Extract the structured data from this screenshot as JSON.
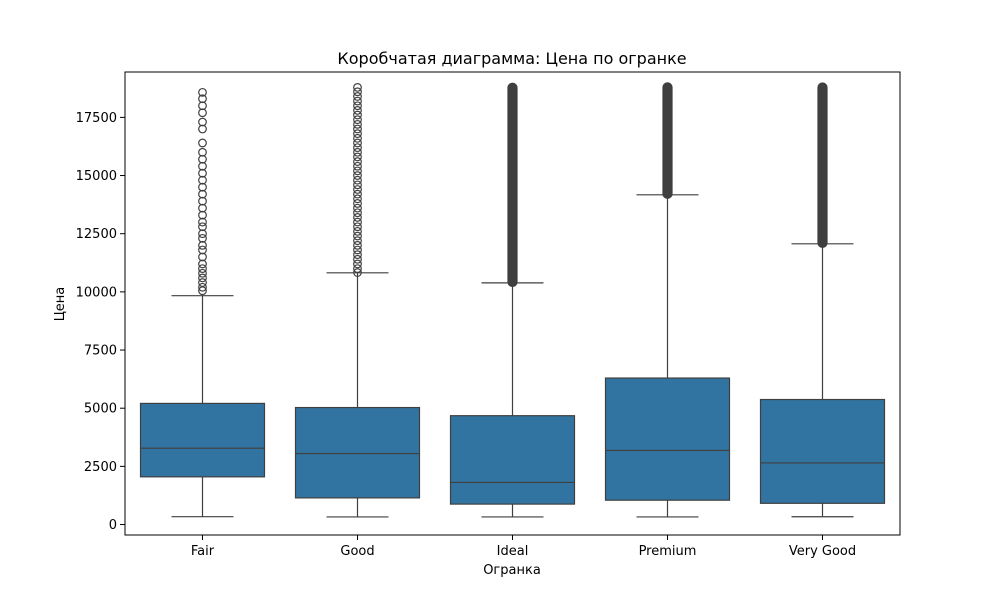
{
  "chart_data": {
    "type": "box",
    "title": "Коробчатая диаграмма: Цена по огранке",
    "xlabel": "Огранка",
    "ylabel": "Цена",
    "categories": [
      "Fair",
      "Good",
      "Ideal",
      "Premium",
      "Very Good"
    ],
    "ylim": [
      -450,
      19450
    ],
    "yticks": [
      0,
      2500,
      5000,
      7500,
      10000,
      12500,
      15000,
      17500
    ],
    "ytick_labels": [
      "0",
      "2500",
      "5000",
      "7500",
      "10000",
      "12500",
      "15000",
      "17500"
    ],
    "box_color": "#3274a1",
    "line_color": "#3f3f3f",
    "grid": false,
    "boxes": [
      {
        "category": "Fair",
        "whisker_low": 337,
        "q1": 2050,
        "median": 3282,
        "q3": 5206,
        "whisker_high": 9836,
        "outliers": [
          10050,
          10200,
          10400,
          10600,
          10800,
          11000,
          11200,
          11500,
          11800,
          12000,
          12300,
          12500,
          12800,
          13000,
          13300,
          13600,
          13900,
          14200,
          14500,
          14800,
          15100,
          15400,
          15700,
          16000,
          16400,
          17000,
          17300,
          17700,
          18000,
          18300,
          18574
        ]
      },
      {
        "category": "Good",
        "whisker_low": 327,
        "q1": 1145,
        "median": 3051,
        "q3": 5028,
        "whisker_high": 10818,
        "outliers": [
          10830,
          11000,
          11200,
          11400,
          11600,
          11800,
          12000,
          12200,
          12400,
          12600,
          12800,
          13000,
          13200,
          13400,
          13600,
          13800,
          14000,
          14200,
          14400,
          14600,
          14800,
          15000,
          15200,
          15400,
          15600,
          15800,
          16000,
          16200,
          16400,
          16600,
          16800,
          17000,
          17200,
          17400,
          17600,
          17800,
          18000,
          18200,
          18400,
          18600,
          18788
        ]
      },
      {
        "category": "Ideal",
        "whisker_low": 326,
        "q1": 878,
        "median": 1810,
        "q3": 4678,
        "whisker_high": 10385,
        "outliers_range": [
          10390,
          18806
        ]
      },
      {
        "category": "Premium",
        "whisker_low": 326,
        "q1": 1046,
        "median": 3185,
        "q3": 6296,
        "whisker_high": 14171,
        "outliers_range": [
          14180,
          18823
        ]
      },
      {
        "category": "Very Good",
        "whisker_low": 336,
        "q1": 912,
        "median": 2648,
        "q3": 5373,
        "whisker_high": 12066,
        "outliers_range": [
          12070,
          18818
        ]
      }
    ]
  }
}
